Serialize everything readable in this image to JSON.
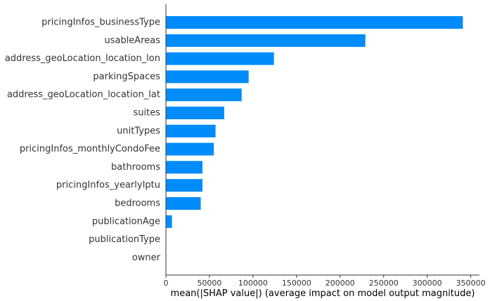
{
  "chart_data": {
    "type": "bar",
    "orientation": "horizontal",
    "categories": [
      "pricingInfos_businessType",
      "usableAreas",
      "address_geoLocation_location_lon",
      "parkingSpaces",
      "address_geoLocation_location_lat",
      "suites",
      "unitTypes",
      "pricingInfos_monthlyCondoFee",
      "bathrooms",
      "pricingInfos_yearlyIptu",
      "bedrooms",
      "publicationAge",
      "publicationType",
      "owner"
    ],
    "values": [
      341000,
      229000,
      124000,
      95000,
      87000,
      67000,
      57000,
      55000,
      42000,
      42000,
      40000,
      7000,
      0,
      0
    ],
    "xlabel": "mean(|SHAP value|) (average impact on model output magnitude)",
    "ylabel": "",
    "xlim": [
      0,
      360000
    ],
    "xticks": [
      0,
      50000,
      100000,
      150000,
      200000,
      250000,
      300000,
      350000
    ],
    "xtick_labels": [
      "0",
      "50000",
      "100000",
      "150000",
      "200000",
      "250000",
      "300000",
      "350000"
    ],
    "grid": false,
    "bar_color": "#008bfb"
  }
}
